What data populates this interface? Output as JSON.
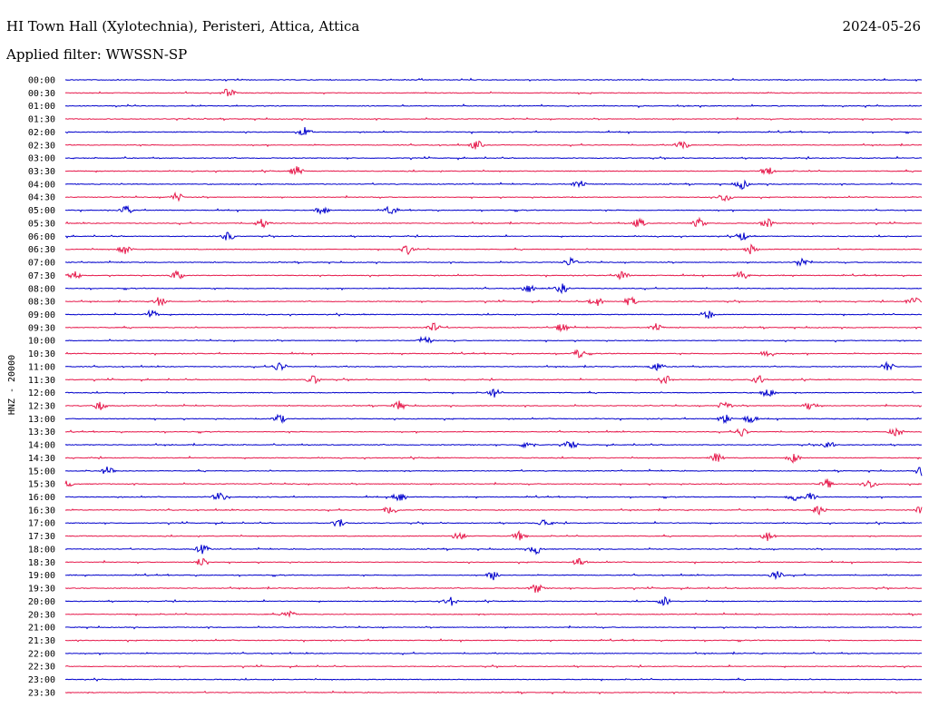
{
  "header": {
    "station": "HI Town Hall (Xylotechnia), Peristeri, Attica, Attica",
    "date": "2024-05-26",
    "filter": "Applied filter: WWSSN-SP"
  },
  "chart_data": {
    "type": "line",
    "title": "HI Town Hall (Xylotechnia), Peristeri, Attica, Attica",
    "ylabel": "HNZ - 20000",
    "xlabel": "",
    "row_labels": [
      "00:00",
      "00:30",
      "01:00",
      "01:30",
      "02:00",
      "02:30",
      "03:00",
      "03:30",
      "04:00",
      "04:30",
      "05:00",
      "05:30",
      "06:00",
      "06:30",
      "07:00",
      "07:30",
      "08:00",
      "08:30",
      "09:00",
      "09:30",
      "10:00",
      "10:30",
      "11:00",
      "11:30",
      "12:00",
      "12:30",
      "13:00",
      "13:30",
      "14:00",
      "14:30",
      "15:00",
      "15:30",
      "16:00",
      "16:30",
      "17:00",
      "17:30",
      "18:00",
      "18:30",
      "19:00",
      "19:30",
      "20:00",
      "20:30",
      "21:00",
      "21:30",
      "22:00",
      "22:30",
      "23:00",
      "23:30"
    ],
    "colors": [
      "#0000cc",
      "#e6194b"
    ],
    "event_positions": [
      [],
      [
        0.19
      ],
      [],
      [],
      [
        0.28
      ],
      [
        0.48,
        0.72
      ],
      [],
      [
        0.27,
        0.82
      ],
      [
        0.6,
        0.79
      ],
      [
        0.13,
        0.77
      ],
      [
        0.07,
        0.3,
        0.38
      ],
      [
        0.23,
        0.67,
        0.74,
        0.82
      ],
      [
        0.19,
        0.79
      ],
      [
        0.07,
        0.4,
        0.8
      ],
      [
        0.59,
        0.86
      ],
      [
        0.01,
        0.13,
        0.65,
        0.79
      ],
      [
        0.54,
        0.58
      ],
      [
        0.11,
        0.62,
        0.66,
        0.99
      ],
      [
        0.1,
        0.75
      ],
      [
        0.43,
        0.58,
        0.69
      ],
      [
        0.42
      ],
      [
        0.6,
        0.82
      ],
      [
        0.25,
        0.69,
        0.96
      ],
      [
        0.29,
        0.7,
        0.81
      ],
      [
        0.5,
        0.82
      ],
      [
        0.04,
        0.39,
        0.77,
        0.87
      ],
      [
        0.25,
        0.77,
        0.8
      ],
      [
        0.79,
        0.97
      ],
      [
        0.54,
        0.59,
        0.89
      ],
      [
        0.76,
        0.85
      ],
      [
        0.05,
        1.0
      ],
      [
        0.0,
        0.89,
        0.94
      ],
      [
        0.18,
        0.39,
        0.85,
        0.87
      ],
      [
        0.38,
        0.88,
        1.0
      ],
      [
        0.32,
        0.56
      ],
      [
        0.46,
        0.53,
        0.82
      ],
      [
        0.16,
        0.55
      ],
      [
        0.16,
        0.6
      ],
      [
        0.5,
        0.83
      ],
      [
        0.55
      ],
      [
        0.45,
        0.7
      ],
      [
        0.26
      ],
      [],
      [],
      [],
      [],
      [],
      []
    ]
  }
}
